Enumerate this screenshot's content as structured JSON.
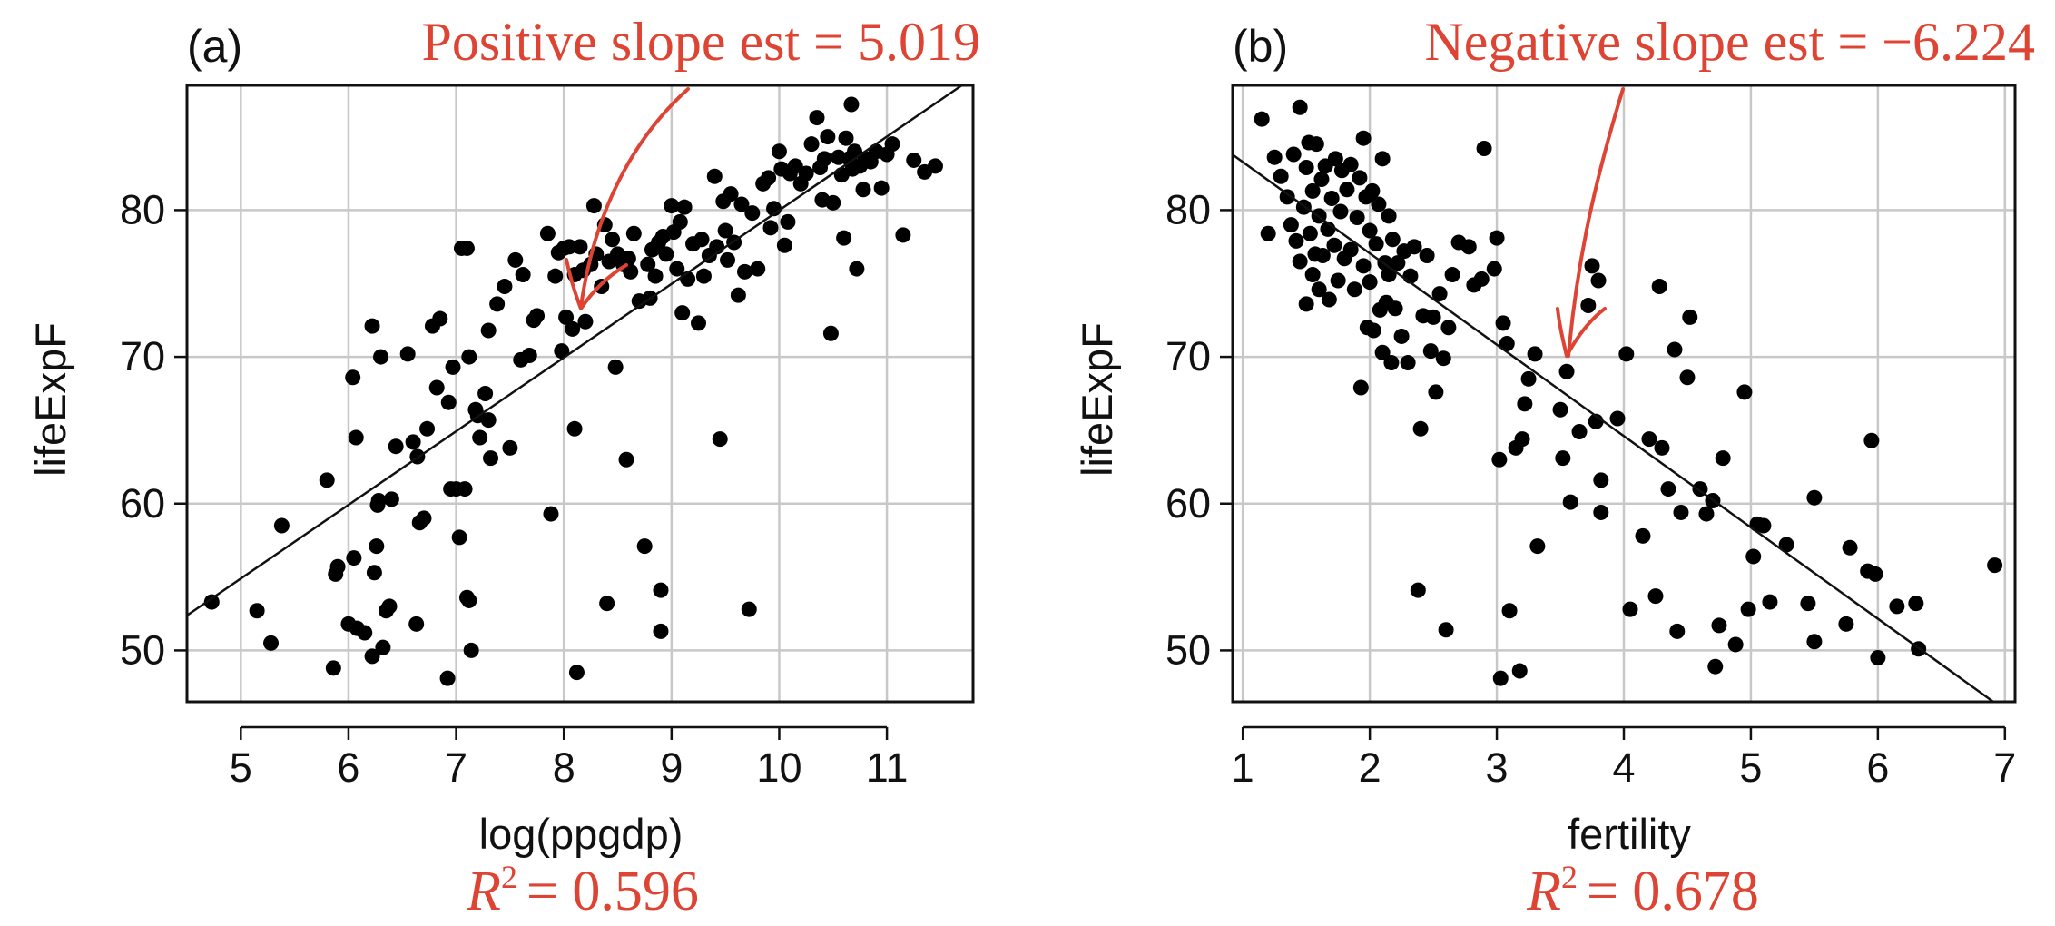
{
  "colors": {
    "annotation": "#dd4433",
    "points": "#000000",
    "grid": "#c8c8c8",
    "frame": "#111111",
    "fit_line": "#111111"
  },
  "chart_data": [
    {
      "type": "scatter",
      "panel_label": "(a)",
      "xlabel": "log(ppgdp)",
      "ylabel": "lifeExpF",
      "annotation_text": "Positive slope est =  5.019",
      "r2": {
        "prefix": "R",
        "sup": "2",
        "value": "= 0.596"
      },
      "xlim": [
        4.5,
        11.8
      ],
      "ylim": [
        46.5,
        88.5
      ],
      "xticks": [
        5,
        6,
        7,
        8,
        9,
        10,
        11
      ],
      "yticks": [
        50,
        60,
        70,
        80
      ],
      "grid": true,
      "fit_line": {
        "slope": 5.019,
        "intercept": 29.8
      },
      "points": [
        [
          4.73,
          53.3
        ],
        [
          5.15,
          52.7
        ],
        [
          5.28,
          50.5
        ],
        [
          5.38,
          58.5
        ],
        [
          5.8,
          61.6
        ],
        [
          5.86,
          48.8
        ],
        [
          5.88,
          55.2
        ],
        [
          5.9,
          55.7
        ],
        [
          6.0,
          51.8
        ],
        [
          6.04,
          68.6
        ],
        [
          6.05,
          56.3
        ],
        [
          6.07,
          64.5
        ],
        [
          6.08,
          51.5
        ],
        [
          6.15,
          51.2
        ],
        [
          6.22,
          72.1
        ],
        [
          6.22,
          49.6
        ],
        [
          6.24,
          55.3
        ],
        [
          6.26,
          57.1
        ],
        [
          6.27,
          59.9
        ],
        [
          6.28,
          60.2
        ],
        [
          6.3,
          70.0
        ],
        [
          6.32,
          50.2
        ],
        [
          6.35,
          52.7
        ],
        [
          6.38,
          53.0
        ],
        [
          6.4,
          60.3
        ],
        [
          6.44,
          63.9
        ],
        [
          6.55,
          70.2
        ],
        [
          6.6,
          64.2
        ],
        [
          6.63,
          51.8
        ],
        [
          6.64,
          63.2
        ],
        [
          6.66,
          58.7
        ],
        [
          6.7,
          59.0
        ],
        [
          6.73,
          65.1
        ],
        [
          6.78,
          72.1
        ],
        [
          6.82,
          67.9
        ],
        [
          6.85,
          72.6
        ],
        [
          6.92,
          48.1
        ],
        [
          6.93,
          66.9
        ],
        [
          6.95,
          61.0
        ],
        [
          6.97,
          69.3
        ],
        [
          7.0,
          61.0
        ],
        [
          7.03,
          57.7
        ],
        [
          7.05,
          77.4
        ],
        [
          7.08,
          61.0
        ],
        [
          7.1,
          77.4
        ],
        [
          7.1,
          53.6
        ],
        [
          7.12,
          70.0
        ],
        [
          7.12,
          53.4
        ],
        [
          7.14,
          50.0
        ],
        [
          7.18,
          66.4
        ],
        [
          7.2,
          66.0
        ],
        [
          7.22,
          64.5
        ],
        [
          7.27,
          67.5
        ],
        [
          7.3,
          71.8
        ],
        [
          7.3,
          65.7
        ],
        [
          7.32,
          63.1
        ],
        [
          7.38,
          73.6
        ],
        [
          7.45,
          74.8
        ],
        [
          7.5,
          63.8
        ],
        [
          7.55,
          76.6
        ],
        [
          7.6,
          69.8
        ],
        [
          7.62,
          75.6
        ],
        [
          7.68,
          70.1
        ],
        [
          7.72,
          72.5
        ],
        [
          7.75,
          72.8
        ],
        [
          7.85,
          78.4
        ],
        [
          7.88,
          59.3
        ],
        [
          7.92,
          75.5
        ],
        [
          7.95,
          77.1
        ],
        [
          7.98,
          70.4
        ],
        [
          8.0,
          77.4
        ],
        [
          8.02,
          72.7
        ],
        [
          8.05,
          77.5
        ],
        [
          8.08,
          71.9
        ],
        [
          8.1,
          75.6
        ],
        [
          8.1,
          65.1
        ],
        [
          8.12,
          48.5
        ],
        [
          8.15,
          77.5
        ],
        [
          8.18,
          75.9
        ],
        [
          8.2,
          72.4
        ],
        [
          8.25,
          76.3
        ],
        [
          8.28,
          80.3
        ],
        [
          8.3,
          77.0
        ],
        [
          8.35,
          74.8
        ],
        [
          8.38,
          79.0
        ],
        [
          8.4,
          53.2
        ],
        [
          8.42,
          76.5
        ],
        [
          8.45,
          78.0
        ],
        [
          8.48,
          69.3
        ],
        [
          8.5,
          77.0
        ],
        [
          8.55,
          76.3
        ],
        [
          8.58,
          63.0
        ],
        [
          8.6,
          76.7
        ],
        [
          8.62,
          75.8
        ],
        [
          8.65,
          78.4
        ],
        [
          8.7,
          73.8
        ],
        [
          8.75,
          57.1
        ],
        [
          8.78,
          76.3
        ],
        [
          8.8,
          74.0
        ],
        [
          8.82,
          77.3
        ],
        [
          8.85,
          75.5
        ],
        [
          8.88,
          77.8
        ],
        [
          8.9,
          54.1
        ],
        [
          8.9,
          51.3
        ],
        [
          8.92,
          78.2
        ],
        [
          8.95,
          77.0
        ],
        [
          9.0,
          80.3
        ],
        [
          9.02,
          78.5
        ],
        [
          9.05,
          76.0
        ],
        [
          9.08,
          79.2
        ],
        [
          9.1,
          73.0
        ],
        [
          9.12,
          80.2
        ],
        [
          9.15,
          75.3
        ],
        [
          9.2,
          77.7
        ],
        [
          9.25,
          72.3
        ],
        [
          9.28,
          78.0
        ],
        [
          9.3,
          75.5
        ],
        [
          9.35,
          76.9
        ],
        [
          9.4,
          82.3
        ],
        [
          9.42,
          77.5
        ],
        [
          9.45,
          64.4
        ],
        [
          9.48,
          80.6
        ],
        [
          9.5,
          78.6
        ],
        [
          9.52,
          76.6
        ],
        [
          9.55,
          81.1
        ],
        [
          9.58,
          77.8
        ],
        [
          9.62,
          74.2
        ],
        [
          9.65,
          80.4
        ],
        [
          9.68,
          75.8
        ],
        [
          9.72,
          52.8
        ],
        [
          9.75,
          79.8
        ],
        [
          9.8,
          76.0
        ],
        [
          9.85,
          81.8
        ],
        [
          9.9,
          82.2
        ],
        [
          9.92,
          78.8
        ],
        [
          9.95,
          80.1
        ],
        [
          10.0,
          84.0
        ],
        [
          10.02,
          82.8
        ],
        [
          10.05,
          77.6
        ],
        [
          10.08,
          79.2
        ],
        [
          10.1,
          82.5
        ],
        [
          10.15,
          83.0
        ],
        [
          10.2,
          81.8
        ],
        [
          10.25,
          82.5
        ],
        [
          10.3,
          84.5
        ],
        [
          10.35,
          86.3
        ],
        [
          10.38,
          82.9
        ],
        [
          10.4,
          80.7
        ],
        [
          10.42,
          83.5
        ],
        [
          10.45,
          85.0
        ],
        [
          10.48,
          71.6
        ],
        [
          10.5,
          80.5
        ],
        [
          10.55,
          83.6
        ],
        [
          10.58,
          82.4
        ],
        [
          10.6,
          78.1
        ],
        [
          10.62,
          84.9
        ],
        [
          10.65,
          83.5
        ],
        [
          10.67,
          87.2
        ],
        [
          10.68,
          82.8
        ],
        [
          10.7,
          84.0
        ],
        [
          10.72,
          76.0
        ],
        [
          10.75,
          83.0
        ],
        [
          10.78,
          81.4
        ],
        [
          10.8,
          83.5
        ],
        [
          10.85,
          83.3
        ],
        [
          10.9,
          84.0
        ],
        [
          10.95,
          81.5
        ],
        [
          11.0,
          83.8
        ],
        [
          11.05,
          84.5
        ],
        [
          11.15,
          78.3
        ],
        [
          11.25,
          83.4
        ],
        [
          11.35,
          82.6
        ],
        [
          11.45,
          83.0
        ]
      ]
    },
    {
      "type": "scatter",
      "panel_label": "(b)",
      "xlabel": "fertility",
      "ylabel": "lifeExpF",
      "annotation_text": "Negative slope est = −6.224",
      "r2": {
        "prefix": "R",
        "sup": "2",
        "value": "= 0.678"
      },
      "xlim": [
        0.92,
        7.08
      ],
      "ylim": [
        46.5,
        88.5
      ],
      "xticks": [
        1,
        2,
        3,
        4,
        5,
        6,
        7
      ],
      "yticks": [
        50,
        60,
        70,
        80
      ],
      "grid": true,
      "fit_line": {
        "slope": -6.224,
        "intercept": 89.5
      },
      "points": [
        [
          1.15,
          86.2
        ],
        [
          1.2,
          78.4
        ],
        [
          1.25,
          83.6
        ],
        [
          1.3,
          82.3
        ],
        [
          1.35,
          80.9
        ],
        [
          1.38,
          79.0
        ],
        [
          1.4,
          83.8
        ],
        [
          1.42,
          77.9
        ],
        [
          1.45,
          87.0
        ],
        [
          1.45,
          76.5
        ],
        [
          1.48,
          80.2
        ],
        [
          1.5,
          82.9
        ],
        [
          1.5,
          73.6
        ],
        [
          1.52,
          84.6
        ],
        [
          1.53,
          78.4
        ],
        [
          1.55,
          75.6
        ],
        [
          1.55,
          81.3
        ],
        [
          1.57,
          77.0
        ],
        [
          1.58,
          84.5
        ],
        [
          1.6,
          79.6
        ],
        [
          1.6,
          74.6
        ],
        [
          1.62,
          82.1
        ],
        [
          1.63,
          76.9
        ],
        [
          1.65,
          83.0
        ],
        [
          1.67,
          78.7
        ],
        [
          1.68,
          73.9
        ],
        [
          1.7,
          80.8
        ],
        [
          1.72,
          77.6
        ],
        [
          1.73,
          83.5
        ],
        [
          1.75,
          75.2
        ],
        [
          1.77,
          79.9
        ],
        [
          1.78,
          82.7
        ],
        [
          1.8,
          76.7
        ],
        [
          1.82,
          81.4
        ],
        [
          1.85,
          83.1
        ],
        [
          1.85,
          77.3
        ],
        [
          1.88,
          74.6
        ],
        [
          1.9,
          79.5
        ],
        [
          1.92,
          82.2
        ],
        [
          1.93,
          67.9
        ],
        [
          1.95,
          84.9
        ],
        [
          1.95,
          76.2
        ],
        [
          1.97,
          80.9
        ],
        [
          1.98,
          72.0
        ],
        [
          2.0,
          78.6
        ],
        [
          2.0,
          75.1
        ],
        [
          2.02,
          81.3
        ],
        [
          2.03,
          71.8
        ],
        [
          2.05,
          77.7
        ],
        [
          2.07,
          80.4
        ],
        [
          2.08,
          73.2
        ],
        [
          2.1,
          83.5
        ],
        [
          2.1,
          70.3
        ],
        [
          2.12,
          76.4
        ],
        [
          2.13,
          73.7
        ],
        [
          2.15,
          79.6
        ],
        [
          2.15,
          75.6
        ],
        [
          2.17,
          69.6
        ],
        [
          2.18,
          78.0
        ],
        [
          2.2,
          73.3
        ],
        [
          2.22,
          76.4
        ],
        [
          2.25,
          71.4
        ],
        [
          2.27,
          77.2
        ],
        [
          2.3,
          69.6
        ],
        [
          2.32,
          75.5
        ],
        [
          2.35,
          77.5
        ],
        [
          2.38,
          54.1
        ],
        [
          2.4,
          65.1
        ],
        [
          2.42,
          72.8
        ],
        [
          2.45,
          76.9
        ],
        [
          2.48,
          70.4
        ],
        [
          2.5,
          72.7
        ],
        [
          2.52,
          67.6
        ],
        [
          2.55,
          74.3
        ],
        [
          2.58,
          69.9
        ],
        [
          2.6,
          51.4
        ],
        [
          2.62,
          72.0
        ],
        [
          2.65,
          75.6
        ],
        [
          2.7,
          77.8
        ],
        [
          2.78,
          77.5
        ],
        [
          2.82,
          74.9
        ],
        [
          2.88,
          75.3
        ],
        [
          2.9,
          84.2
        ],
        [
          2.98,
          76.0
        ],
        [
          3.0,
          78.1
        ],
        [
          3.02,
          63.0
        ],
        [
          3.03,
          48.1
        ],
        [
          3.05,
          72.3
        ],
        [
          3.08,
          70.9
        ],
        [
          3.1,
          52.7
        ],
        [
          3.15,
          63.8
        ],
        [
          3.18,
          48.6
        ],
        [
          3.2,
          64.4
        ],
        [
          3.22,
          66.8
        ],
        [
          3.25,
          68.5
        ],
        [
          3.3,
          70.2
        ],
        [
          3.32,
          57.1
        ],
        [
          3.5,
          66.4
        ],
        [
          3.52,
          63.1
        ],
        [
          3.55,
          69.0
        ],
        [
          3.58,
          60.1
        ],
        [
          3.65,
          64.9
        ],
        [
          3.72,
          73.5
        ],
        [
          3.75,
          76.2
        ],
        [
          3.78,
          65.6
        ],
        [
          3.8,
          75.2
        ],
        [
          3.82,
          61.6
        ],
        [
          3.82,
          59.4
        ],
        [
          3.95,
          65.8
        ],
        [
          4.02,
          70.2
        ],
        [
          4.05,
          52.8
        ],
        [
          4.15,
          57.8
        ],
        [
          4.2,
          64.4
        ],
        [
          4.25,
          53.7
        ],
        [
          4.28,
          74.8
        ],
        [
          4.3,
          63.8
        ],
        [
          4.35,
          61.0
        ],
        [
          4.4,
          70.5
        ],
        [
          4.42,
          51.3
        ],
        [
          4.45,
          59.4
        ],
        [
          4.5,
          68.6
        ],
        [
          4.52,
          72.7
        ],
        [
          4.6,
          61.0
        ],
        [
          4.65,
          59.3
        ],
        [
          4.7,
          60.2
        ],
        [
          4.72,
          48.9
        ],
        [
          4.75,
          51.7
        ],
        [
          4.78,
          63.1
        ],
        [
          4.88,
          50.4
        ],
        [
          4.95,
          67.6
        ],
        [
          4.98,
          52.8
        ],
        [
          5.02,
          56.4
        ],
        [
          5.05,
          58.6
        ],
        [
          5.1,
          58.5
        ],
        [
          5.15,
          53.3
        ],
        [
          5.28,
          57.2
        ],
        [
          5.45,
          53.2
        ],
        [
          5.5,
          60.4
        ],
        [
          5.5,
          50.6
        ],
        [
          5.75,
          51.8
        ],
        [
          5.78,
          57.0
        ],
        [
          5.92,
          55.4
        ],
        [
          5.95,
          64.3
        ],
        [
          5.98,
          55.2
        ],
        [
          6.0,
          49.5
        ],
        [
          6.15,
          53.0
        ],
        [
          6.3,
          53.2
        ],
        [
          6.32,
          50.1
        ],
        [
          6.92,
          55.8
        ]
      ]
    }
  ]
}
